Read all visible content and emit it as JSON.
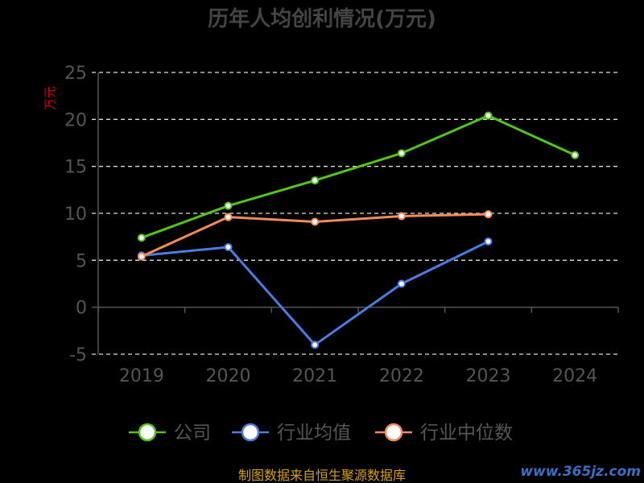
{
  "chart_data": {
    "type": "line",
    "title": "历年人均创利情况(万元)",
    "ylabel": "万元",
    "categories": [
      "2019",
      "2020",
      "2021",
      "2022",
      "2023",
      "2024"
    ],
    "yticks": [
      "25",
      "20",
      "15",
      "10",
      "5",
      "0",
      "-5"
    ],
    "ylim": [
      -5,
      25
    ],
    "grid": true,
    "legend_position": "bottom",
    "series": [
      {
        "name": "公司",
        "color": "#52c41a",
        "values": [
          7.4,
          10.8,
          13.5,
          16.4,
          20.4,
          16.2
        ]
      },
      {
        "name": "行业均值",
        "color": "#4a7de0",
        "values": [
          5.5,
          6.4,
          -4.0,
          2.5,
          7.0,
          null
        ]
      },
      {
        "name": "行业中位数",
        "color": "#f58a5a",
        "values": [
          5.4,
          9.6,
          9.1,
          9.7,
          9.9,
          null
        ]
      }
    ]
  },
  "source_note": "制图数据来自恒生聚源数据库",
  "watermark": "www.365jz.com",
  "colors": {
    "axis_text": "#555555",
    "grid": "#dddddd",
    "title": "#444444",
    "ylabel": "#cc0000",
    "source": "#d4a017",
    "watermark": "#3a6fc4"
  }
}
